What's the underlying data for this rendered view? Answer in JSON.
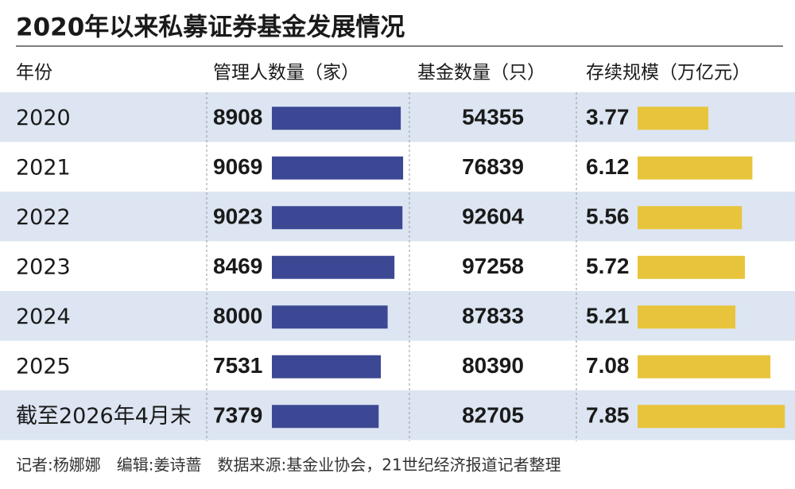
{
  "title": "2020年以来私募证券基金发展情况",
  "table": {
    "headers": [
      "年份",
      "管理人数量（家）",
      "基金数量（只）",
      "存续规模（万亿元）"
    ],
    "rows": [
      [
        "2020",
        8908,
        54355,
        3.77
      ],
      [
        "2021",
        9069,
        76839,
        6.12
      ],
      [
        "2022",
        9023,
        92604,
        5.56
      ],
      [
        "2023",
        8469,
        97258,
        5.72
      ],
      [
        "2024",
        8000,
        87833,
        5.21
      ],
      [
        "2025",
        7531,
        80390,
        7.08
      ],
      [
        "截至2026年4月末",
        7379,
        82705,
        7.85
      ]
    ]
  },
  "footer": "记者:杨娜娜　编辑:姜诗蔷　数据来源:基金业协会，21世纪经济报道记者整理"
}
